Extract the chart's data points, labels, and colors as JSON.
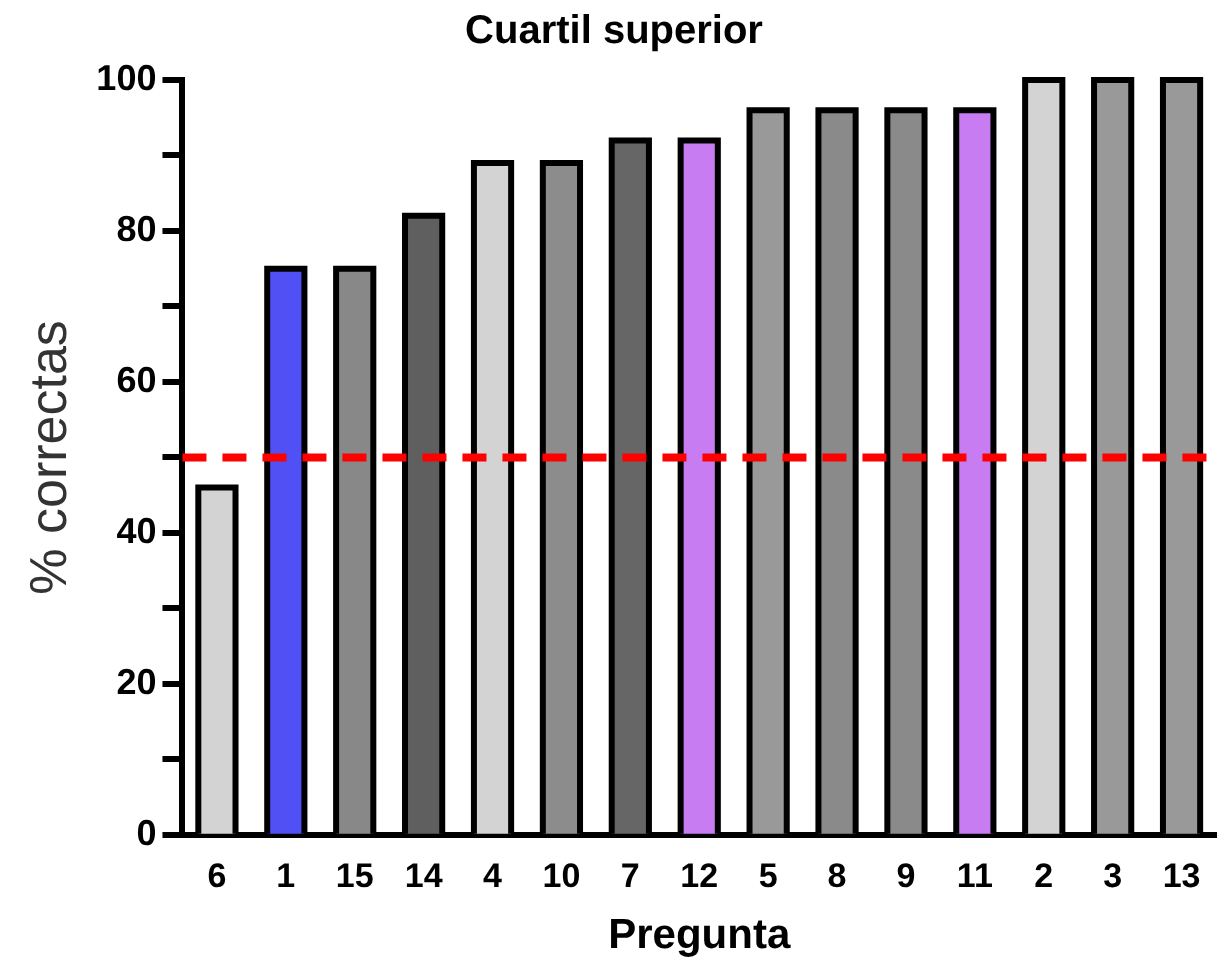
{
  "chart_data": {
    "type": "bar",
    "title": "Cuartil superior",
    "xlabel": "Pregunta",
    "ylabel": "% correctas",
    "categories": [
      "6",
      "1",
      "15",
      "14",
      "4",
      "10",
      "7",
      "12",
      "5",
      "8",
      "9",
      "11",
      "2",
      "3",
      "13"
    ],
    "values": [
      46,
      75,
      75,
      82,
      89,
      89,
      92,
      92,
      96,
      96,
      96,
      96,
      100,
      100,
      100
    ],
    "colors": [
      "#d3d3d3",
      "#5050f5",
      "#888888",
      "#5f5f5f",
      "#d3d3d3",
      "#8c8c8c",
      "#666666",
      "#c77cf2",
      "#999999",
      "#8a8a8a",
      "#8a8a8a",
      "#c77cf2",
      "#d3d3d3",
      "#999999",
      "#999999"
    ],
    "ylim": [
      0,
      100
    ],
    "yticks": [
      0,
      {
        "value": 10,
        "label": null
      },
      20,
      {
        "value": 30,
        "label": null
      },
      40,
      {
        "value": 50,
        "label": null
      },
      60,
      {
        "value": 70,
        "label": null
      },
      80,
      {
        "value": 90,
        "label": null
      },
      100
    ],
    "ref_lines": [
      {
        "axis": "y",
        "value": 50,
        "color": "#ff0000",
        "line_style": "dashed"
      }
    ],
    "grid": false,
    "legend": false
  }
}
